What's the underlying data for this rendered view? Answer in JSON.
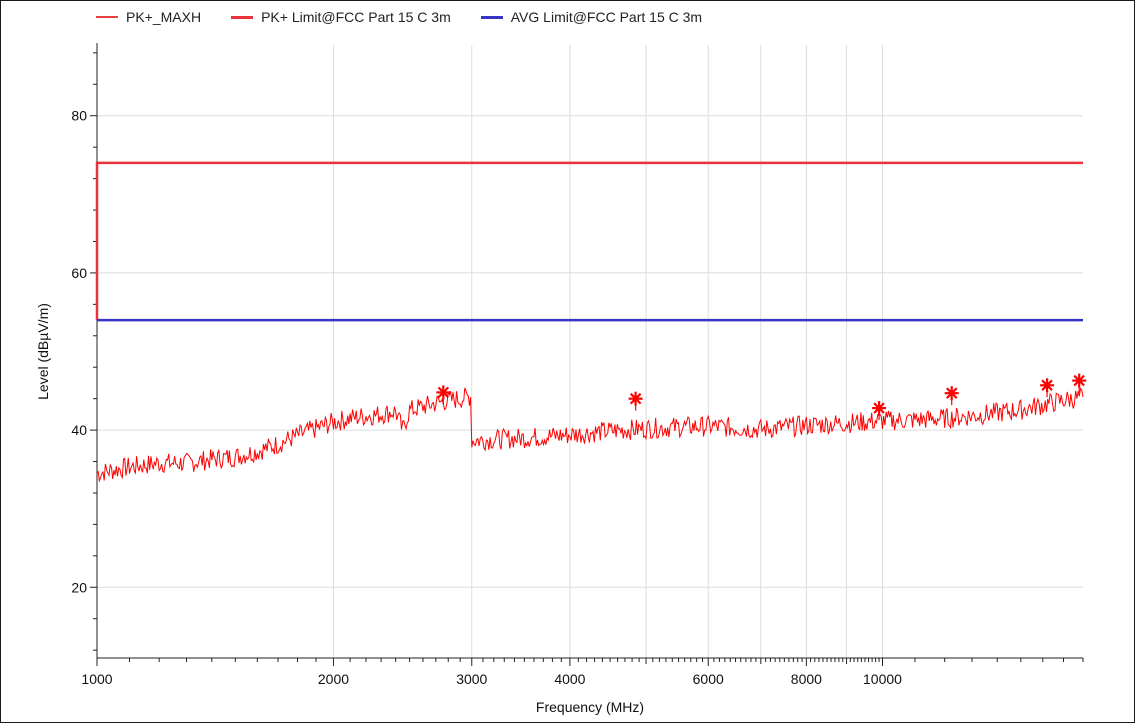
{
  "chart_data": {
    "type": "line",
    "title": "",
    "xlabel": "Frequency (MHz)",
    "ylabel": "Level (dBµV/m)",
    "x_scale": "log",
    "xlim": [
      1000,
      18000
    ],
    "ylim": [
      11,
      89
    ],
    "x_ticks": [
      1000,
      2000,
      3000,
      4000,
      6000,
      8000,
      10000
    ],
    "x_tick_labels": [
      "1000",
      "2000",
      "3000",
      "4000",
      "6000",
      "8000",
      "10000"
    ],
    "y_ticks": [
      20,
      40,
      60,
      80
    ],
    "y_tick_labels": [
      "20",
      "40",
      "60",
      "80"
    ],
    "grid": true,
    "legend_position": "top",
    "series": [
      {
        "name": "PK+_MAXH",
        "color": "#ff0000",
        "x": [
          1000,
          1100,
          1200,
          1300,
          1400,
          1500,
          1600,
          1700,
          1800,
          1900,
          2000,
          2100,
          2200,
          2300,
          2400,
          2450,
          2500,
          2600,
          2700,
          2800,
          2900,
          2990,
          3010,
          3200,
          3500,
          4000,
          4500,
          5000,
          5500,
          6000,
          7000,
          8000,
          9000,
          10000,
          11000,
          12000,
          13000,
          14000,
          15000,
          16000,
          17000,
          18000
        ],
        "y": [
          34.5,
          35.3,
          35.8,
          35.8,
          36.3,
          36.6,
          37.3,
          38.2,
          39.3,
          40.2,
          41.0,
          41.5,
          41.8,
          42.0,
          42.4,
          40.0,
          42.5,
          43.0,
          43.4,
          43.8,
          44.0,
          44.3,
          38.7,
          38.8,
          39.0,
          39.4,
          39.9,
          40.2,
          40.4,
          40.5,
          40.1,
          40.6,
          40.9,
          41.2,
          41.3,
          41.5,
          41.8,
          42.2,
          42.6,
          43.2,
          43.8,
          44.2
        ]
      },
      {
        "name": "PK+ Limit@FCC Part 15 C  3m",
        "color": "#e8333a",
        "x": [
          1000,
          18000
        ],
        "y": [
          74,
          74
        ]
      },
      {
        "name": "AVG Limit@FCC Part 15 C  3m",
        "color": "#3535c8",
        "x": [
          1000,
          18000
        ],
        "y": [
          54,
          54
        ]
      }
    ],
    "markers": [
      {
        "x": 2760,
        "y": 44.8
      },
      {
        "x": 4850,
        "y": 44.0
      },
      {
        "x": 9900,
        "y": 42.8
      },
      {
        "x": 12250,
        "y": 44.7
      },
      {
        "x": 16200,
        "y": 45.7
      },
      {
        "x": 17800,
        "y": 46.3
      }
    ]
  }
}
